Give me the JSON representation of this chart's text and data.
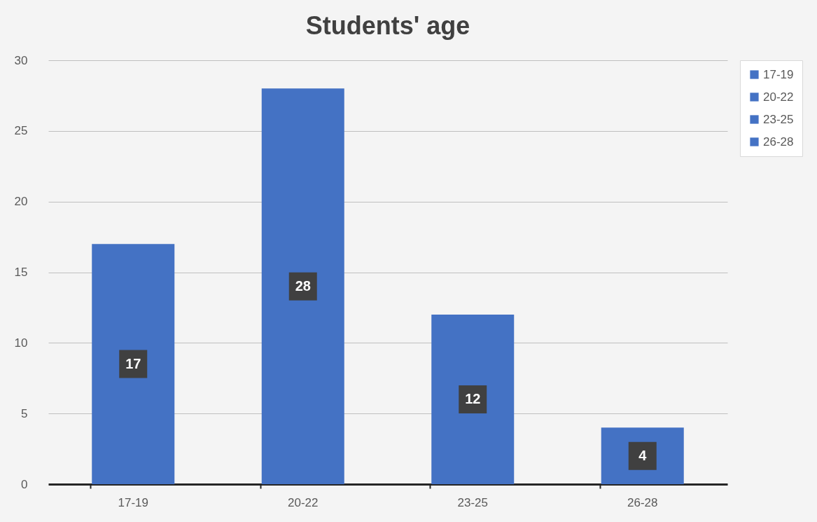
{
  "chart_data": {
    "type": "bar",
    "title": "Students' age",
    "categories": [
      "17-19",
      "20-22",
      "23-25",
      "26-28"
    ],
    "series": [
      {
        "name": "17-19",
        "color": "#4472c4",
        "values": [
          17,
          null,
          null,
          null
        ]
      },
      {
        "name": "20-22",
        "color": "#4472c4",
        "values": [
          null,
          28,
          null,
          null
        ]
      },
      {
        "name": "23-25",
        "color": "#4472c4",
        "values": [
          null,
          null,
          12,
          null
        ]
      },
      {
        "name": "26-28",
        "color": "#4472c4",
        "values": [
          null,
          null,
          null,
          4
        ]
      }
    ],
    "ylim": [
      0,
      30
    ],
    "yticks": [
      0,
      5,
      10,
      15,
      20,
      25,
      30
    ],
    "grid": "y",
    "legend": "right",
    "data_labels": true
  }
}
